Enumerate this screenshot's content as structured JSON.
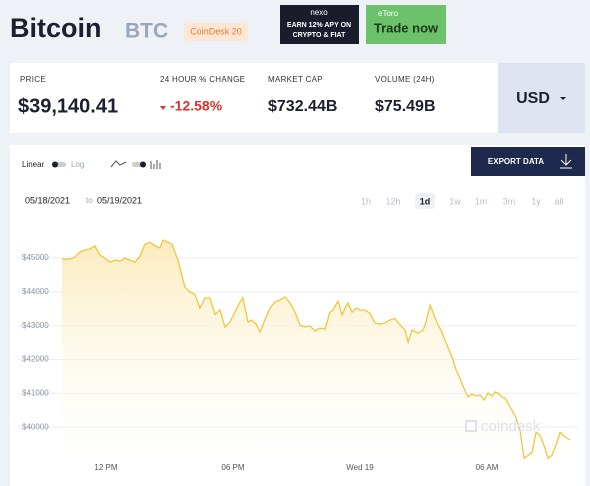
{
  "header": {
    "title": "Bitcoin",
    "symbol": "BTC",
    "badge": "CoinDesk 20"
  },
  "ads": {
    "nexo": {
      "brand": "nexo",
      "line1": "EARN 12% APY ON",
      "line2": "CRYPTO & FIAT"
    },
    "etoro": {
      "brand": "eToro",
      "cta": "Trade now"
    }
  },
  "stats": [
    {
      "label": "PRICE",
      "value": "$39,140.41"
    },
    {
      "label": "24 HOUR % CHANGE",
      "value": "-12.58%"
    },
    {
      "label": "MARKET CAP",
      "value": "$732.44B"
    },
    {
      "label": "VOLUME (24H)",
      "value": "$75.49B"
    }
  ],
  "currency": "USD",
  "controls": {
    "linear": "Linear",
    "log": "Log",
    "export": "EXPORT DATA",
    "date_from": "05/18/2021",
    "date_sep": "to",
    "date_to": "05/19/2021",
    "ranges": [
      "1h",
      "12h",
      "1d",
      "1w",
      "1m",
      "3m",
      "1y",
      "all"
    ],
    "selected_range_index": 2
  },
  "chart_data": {
    "type": "line",
    "color": "#f0c63c",
    "grid": true,
    "watermark": "coindesk",
    "x": [
      9.92,
      10.3,
      10.54,
      10.77,
      11.01,
      11.24,
      11.48,
      11.72,
      11.95,
      12.19,
      12.43,
      12.66,
      12.9,
      13.13,
      13.37,
      13.61,
      13.84,
      14.08,
      14.31,
      14.55,
      14.69,
      14.93,
      15.12,
      15.4,
      15.73,
      15.97,
      16.2,
      16.44,
      16.68,
      16.91,
      17.15,
      17.39,
      17.62,
      17.86,
      18.09,
      18.33,
      18.47,
      18.71,
      18.9,
      19.09,
      19.28,
      19.51,
      19.75,
      19.98,
      20.22,
      20.46,
      20.69,
      20.93,
      21.16,
      21.4,
      21.64,
      21.87,
      22.11,
      22.35,
      22.58,
      22.72,
      22.96,
      23.15,
      23.29,
      23.43,
      23.62,
      23.81,
      24.0,
      24.24,
      24.47,
      24.71,
      24.94,
      25.18,
      25.42,
      25.65,
      25.89,
      26.13,
      26.27,
      26.46,
      26.74,
      26.98,
      27.12,
      27.31,
      27.5,
      27.69,
      27.87,
      28.11,
      28.35,
      28.54,
      28.72,
      28.91,
      29.1,
      29.29,
      29.48,
      29.67,
      29.86,
      30.05,
      30.24,
      30.38,
      30.52,
      30.71,
      30.85,
      31.04,
      31.18,
      31.37,
      31.56,
      31.75,
      31.94,
      32.13,
      32.32,
      32.5,
      32.69,
      32.88,
      33.07,
      33.26,
      33.45,
      33.69,
      33.92
    ],
    "values": [
      44970,
      44970,
      45030,
      45180,
      45240,
      45270,
      45360,
      45090,
      45000,
      44880,
      44940,
      44910,
      45000,
      44940,
      44880,
      45060,
      45410,
      45470,
      45360,
      45300,
      45530,
      45470,
      45410,
      44940,
      44140,
      43990,
      43930,
      43520,
      43820,
      43820,
      43340,
      43460,
      42960,
      43110,
      43400,
      43700,
      43820,
      43110,
      43170,
      43050,
      42810,
      43170,
      43520,
      43700,
      43760,
      43850,
      43670,
      43400,
      43020,
      42960,
      42990,
      42840,
      42930,
      42900,
      43400,
      43460,
      43730,
      43310,
      43520,
      43670,
      43400,
      43520,
      43460,
      43460,
      43370,
      43080,
      43050,
      43080,
      43170,
      43220,
      43020,
      42870,
      42510,
      42870,
      42780,
      42870,
      43110,
      43610,
      43310,
      43020,
      42810,
      42430,
      42070,
      41690,
      41450,
      41150,
      40890,
      40980,
      40920,
      40950,
      40800,
      41010,
      40920,
      41040,
      41010,
      40890,
      40860,
      40650,
      40500,
      40270,
      39910,
      39080,
      39170,
      39260,
      39850,
      39760,
      39470,
      39080,
      39170,
      39470,
      39850,
      39710,
      39620
    ],
    "xlim": [
      9.9,
      34
    ],
    "xticks": [
      {
        "value": 12,
        "label": "12 PM"
      },
      {
        "value": 18,
        "label": "06 PM"
      },
      {
        "value": 24,
        "label": "Wed 19"
      },
      {
        "value": 30,
        "label": "06 AM"
      }
    ],
    "ylim": [
      39000,
      45800
    ],
    "yticks": [
      {
        "value": 40000,
        "label": "$40000"
      },
      {
        "value": 41000,
        "label": "$41000"
      },
      {
        "value": 42000,
        "label": "$42000"
      },
      {
        "value": 43000,
        "label": "$43000"
      },
      {
        "value": 44000,
        "label": "$44000"
      },
      {
        "value": 45000,
        "label": "$45000"
      }
    ]
  }
}
